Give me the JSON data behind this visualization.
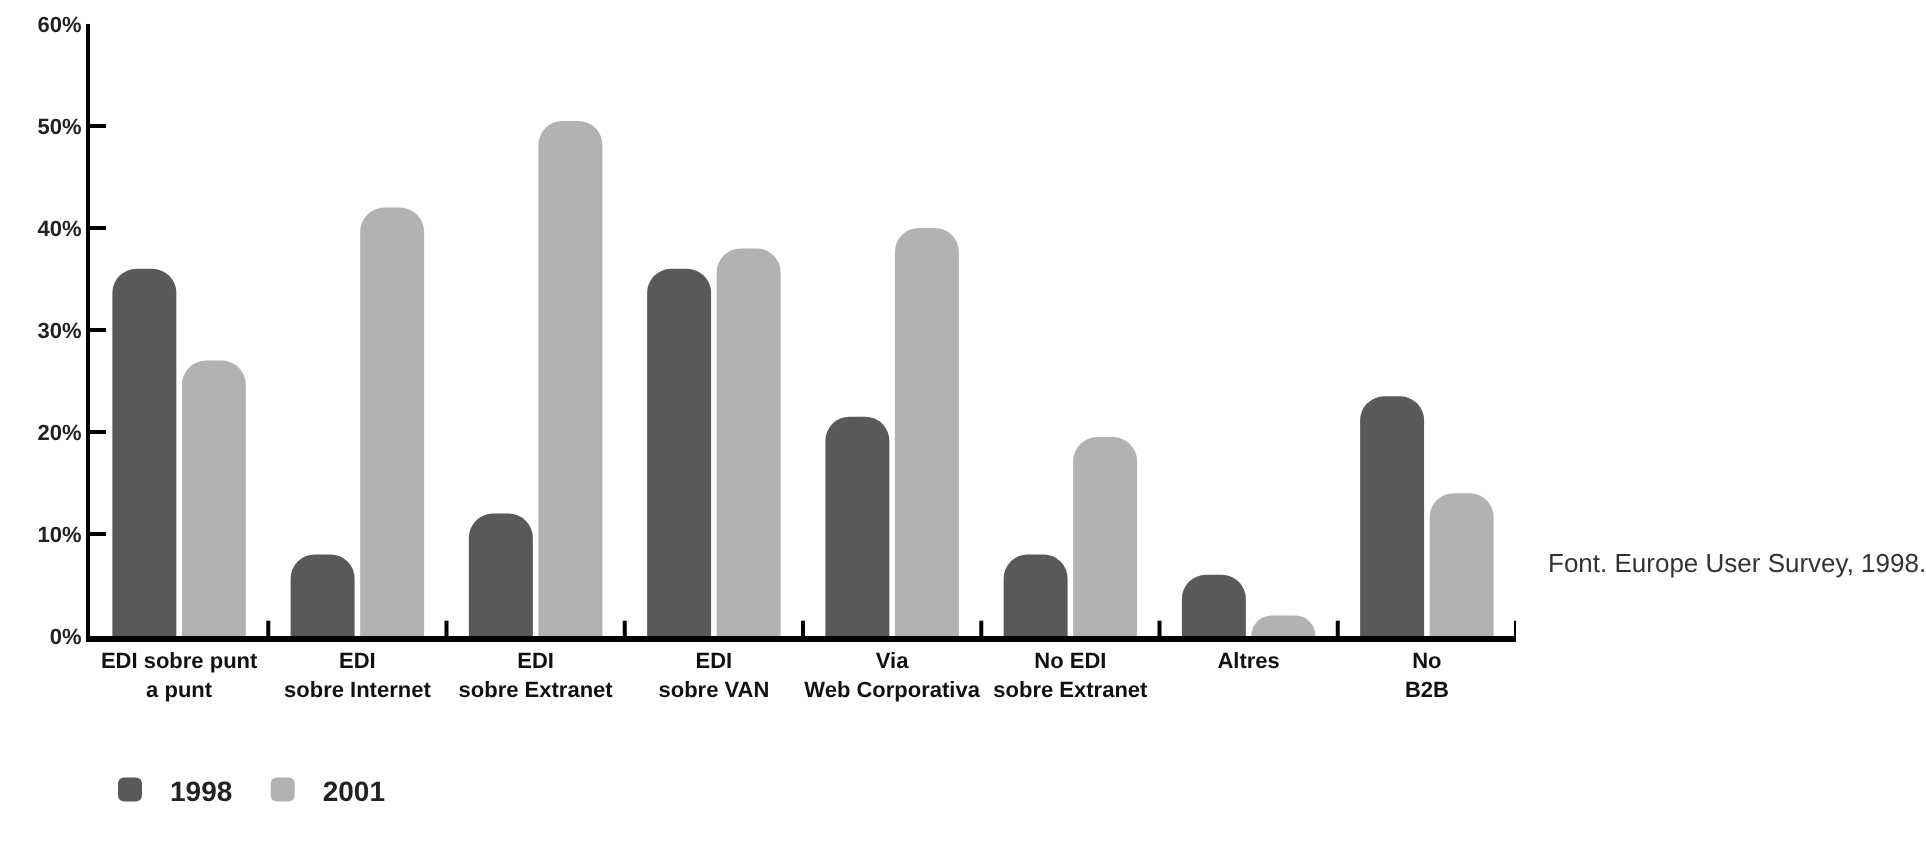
{
  "chart_data": {
    "type": "bar",
    "categories": [
      "EDI sobre punt a punt",
      "EDI sobre Internet",
      "EDI sobre Extranet",
      "EDI sobre VAN",
      "Via Web Corporativa",
      "No EDI sobre Extranet",
      "Altres",
      "No B2B"
    ],
    "series": [
      {
        "name": "1998",
        "color": "#595959",
        "values": [
          36,
          8,
          12,
          36,
          21.5,
          8,
          6,
          23.5
        ]
      },
      {
        "name": "2001",
        "color": "#b2b2b2",
        "values": [
          27,
          42,
          50.5,
          38,
          40,
          19.5,
          2,
          14
        ]
      }
    ],
    "ylim": [
      0,
      60
    ],
    "yticks": [
      {
        "value": 0,
        "label": "0%"
      },
      {
        "value": 10,
        "label": "10%"
      },
      {
        "value": 20,
        "label": "20%"
      },
      {
        "value": 30,
        "label": "30%"
      },
      {
        "value": 40,
        "label": "40%"
      },
      {
        "value": 50,
        "label": "50%"
      },
      {
        "value": 60,
        "label": "60%"
      }
    ],
    "grid": false,
    "legend": "bottom left",
    "annotations": [
      "Font. Europe User Survey, 1998."
    ]
  }
}
